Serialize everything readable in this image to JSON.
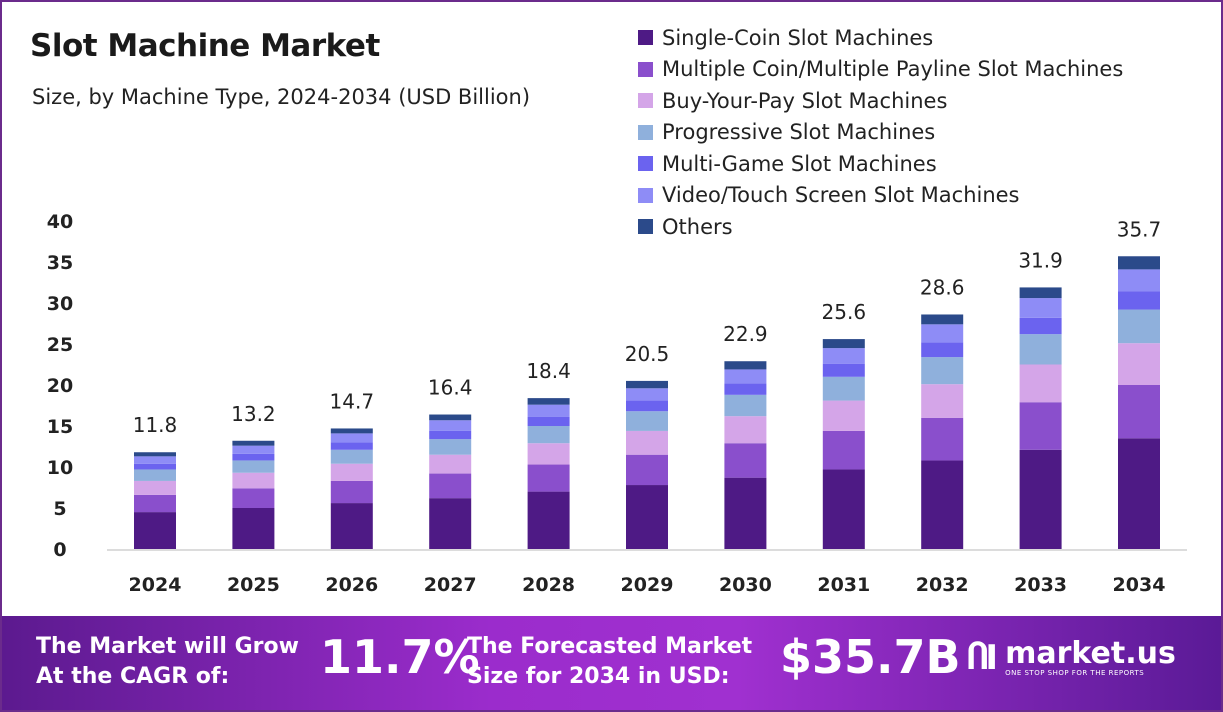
{
  "chart_data": {
    "type": "bar",
    "stacked": true,
    "title": "Slot Machine Market",
    "subtitle": "Size, by Machine Type, 2024-2034 (USD Billion)",
    "categories": [
      "2024",
      "2025",
      "2026",
      "2027",
      "2028",
      "2029",
      "2030",
      "2031",
      "2032",
      "2033",
      "2034"
    ],
    "totals": [
      11.8,
      13.2,
      14.7,
      16.4,
      18.4,
      20.5,
      22.9,
      25.6,
      28.6,
      31.9,
      35.7
    ],
    "ylim": [
      0,
      40
    ],
    "yticks": [
      0,
      5,
      10,
      15,
      20,
      25,
      30,
      35,
      40
    ],
    "grid": false,
    "legend_position": "top-right",
    "series": [
      {
        "name": "Single-Coin Slot Machines",
        "color": "#4e1a85",
        "values": [
          4.5,
          5.0,
          5.6,
          6.2,
          7.0,
          7.8,
          8.7,
          9.7,
          10.8,
          12.1,
          13.5
        ]
      },
      {
        "name": "Multiple Coin/Multiple Payline Slot Machines",
        "color": "#8a4fcc",
        "values": [
          2.1,
          2.4,
          2.7,
          3.0,
          3.3,
          3.7,
          4.2,
          4.7,
          5.2,
          5.8,
          6.5
        ]
      },
      {
        "name": "Buy-Your-Pay Slot Machines",
        "color": "#d4a5e8",
        "values": [
          1.7,
          1.9,
          2.1,
          2.3,
          2.6,
          2.9,
          3.3,
          3.7,
          4.1,
          4.6,
          5.1
        ]
      },
      {
        "name": "Progressive Slot Machines",
        "color": "#8fb0dc",
        "values": [
          1.4,
          1.5,
          1.7,
          1.9,
          2.1,
          2.4,
          2.6,
          2.9,
          3.3,
          3.7,
          4.1
        ]
      },
      {
        "name": "Multi-Game Slot Machines",
        "color": "#6b63ef",
        "values": [
          0.7,
          0.8,
          0.9,
          1.0,
          1.1,
          1.3,
          1.4,
          1.6,
          1.8,
          2.0,
          2.2
        ]
      },
      {
        "name": "Video/Touch Screen Slot Machines",
        "color": "#8e8cf6",
        "values": [
          0.9,
          1.0,
          1.1,
          1.3,
          1.5,
          1.5,
          1.7,
          1.9,
          2.2,
          2.4,
          2.7
        ]
      },
      {
        "name": "Others",
        "color": "#2b4a8a",
        "values": [
          0.5,
          0.6,
          0.6,
          0.7,
          0.8,
          0.9,
          1.0,
          1.1,
          1.2,
          1.3,
          1.6
        ]
      }
    ]
  },
  "footer": {
    "cagr_label_1": "The Market will Grow",
    "cagr_label_2": "At the CAGR of:",
    "cagr_value": "11.7%",
    "forecast_label_1": "The Forecasted Market",
    "forecast_label_2": "Size for 2034 in USD:",
    "forecast_value": "$35.7B",
    "brand": "market.us",
    "brand_tagline": "ONE STOP SHOP FOR THE REPORTS"
  },
  "colors": {
    "footer_start": "#5c1a8f",
    "footer_mid": "#a030d0",
    "border": "#6b2b8c"
  }
}
